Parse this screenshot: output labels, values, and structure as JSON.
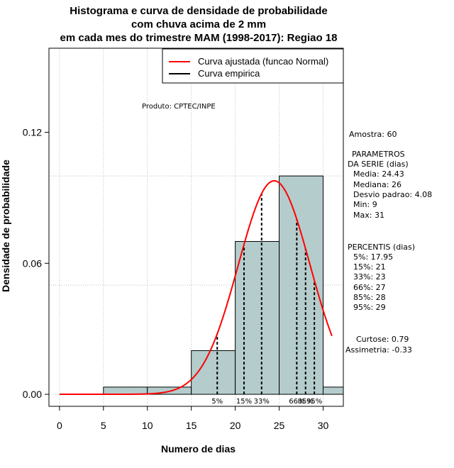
{
  "chart_data": {
    "type": "bar",
    "title_lines": [
      "Histograma e curva de densidade de probabilidade",
      "com chuva acima de 2 mm",
      "em cada mes do trimestre MAM (1998-2017): Regiao 18"
    ],
    "xlabel": "Numero de dias",
    "ylabel": "Densidade de probabilidade",
    "xlim": [
      -1.2,
      32.3
    ],
    "ylim": [
      -0.0055,
      0.1585
    ],
    "xticks": [
      "0",
      "5",
      "10",
      "15",
      "20",
      "25",
      "30"
    ],
    "yticks": [
      "0.00",
      "0.06",
      "0.12"
    ],
    "grid": true,
    "bins": [
      {
        "from": 5,
        "to": 10,
        "density": 0.0033
      },
      {
        "from": 10,
        "to": 15,
        "density": 0.0033
      },
      {
        "from": 15,
        "to": 20,
        "density": 0.02
      },
      {
        "from": 20,
        "to": 25,
        "density": 0.07
      },
      {
        "from": 25,
        "to": 30,
        "density": 0.1
      },
      {
        "from": 30,
        "to": 35,
        "density": 0.0033
      }
    ],
    "fitted_curve": {
      "name": "Curva ajustada (funcao Normal)",
      "distribution": "normal",
      "mean": 24.43,
      "sd": 4.08,
      "x_range": [
        0,
        31
      ],
      "color": "#ff0000"
    },
    "empirical_curve": {
      "name": "Curva empirica",
      "color": "#000000"
    },
    "legend": {
      "position": "top-right"
    },
    "product_note": "Produto: CPTEC/INPE",
    "percentile_lines": [
      {
        "label": "5%",
        "x": 17.95
      },
      {
        "label": "15%",
        "x": 21
      },
      {
        "label": "33%",
        "x": 23
      },
      {
        "label": "66%",
        "x": 27
      },
      {
        "label": "85%",
        "x": 28
      },
      {
        "label": "95%",
        "x": 29
      }
    ],
    "bar_color": "#b5cccc"
  },
  "stats": {
    "sample": "Amostra: 60",
    "params_title_1": "PARAMETROS",
    "params_title_2": "DA SERIE (dias)",
    "media": "Media: 24.43",
    "mediana": "Mediana: 26",
    "desvio": "Desvio padrao: 4.08",
    "min": "Min: 9",
    "max": "Max: 31",
    "percentis_title": "PERCENTIS (dias)",
    "p5": "5%: 17.95",
    "p15": "15%: 21",
    "p33": "33%: 23",
    "p66": "66%: 27",
    "p85": "85%: 28",
    "p95": "95%: 29",
    "curtose": "Curtose: 0.79",
    "assimetria": "Assimetria: -0.33"
  }
}
